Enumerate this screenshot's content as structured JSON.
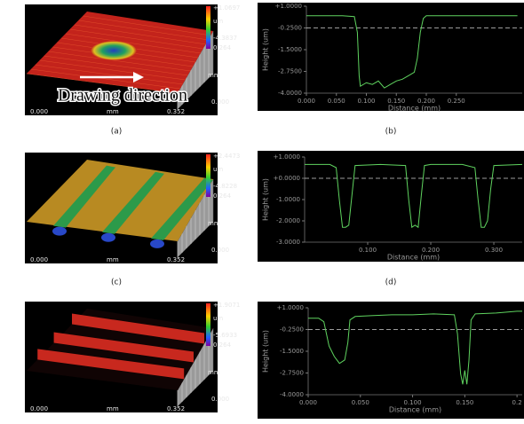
{
  "surfaces": [
    {
      "caption": "(a)",
      "max_label": "+1.0697",
      "unit": "um",
      "min_label": "-4.3837",
      "depth_label": "0.264",
      "depth_unit": "mm",
      "depth_start": "0.000",
      "x_start": "0.000",
      "x_unit": "mm",
      "x_end": "0.352",
      "annotation": "Drawing direction"
    },
    {
      "caption": "(c)",
      "max_label": "+2.4473",
      "unit": "um",
      "min_label": "-4.8228",
      "depth_label": "0.264",
      "depth_unit": "mm",
      "depth_start": "0.000",
      "x_start": "0.000",
      "x_unit": "mm",
      "x_end": "0.352"
    },
    {
      "max_label": "+1.9071",
      "unit": "um",
      "min_label": "-5.6933",
      "depth_label": "0.264",
      "depth_unit": "mm",
      "depth_start": "0.000",
      "x_start": "0.000",
      "x_unit": "mm",
      "x_end": "0.352"
    }
  ],
  "chart_data": [
    {
      "type": "line",
      "caption": "(b)",
      "xlabel": "Distance (mm)",
      "ylabel": "Height (um)",
      "xlim": [
        0,
        0.36
      ],
      "ylim": [
        -4,
        1
      ],
      "reference": -0.25,
      "xticks": [
        {
          "value": 0,
          "label": "0.000"
        },
        {
          "value": 0.05,
          "label": "0.050"
        },
        {
          "value": 0.1,
          "label": "0.100"
        },
        {
          "value": 0.15,
          "label": "0.150"
        },
        {
          "value": 0.2,
          "label": "0.200"
        },
        {
          "value": 0.25,
          "label": "0.250"
        }
      ],
      "yticks": [
        {
          "value": 1,
          "label": "+1.0000"
        },
        {
          "value": -0.25,
          "label": "-0.2500"
        },
        {
          "value": -1.5,
          "label": "-1.5000"
        },
        {
          "value": -2.75,
          "label": "-2.7500"
        },
        {
          "value": -4,
          "label": "-4.0000"
        }
      ],
      "x": [
        0,
        0.02,
        0.04,
        0.06,
        0.08,
        0.085,
        0.088,
        0.09,
        0.1,
        0.11,
        0.12,
        0.13,
        0.14,
        0.15,
        0.16,
        0.17,
        0.18,
        0.185,
        0.19,
        0.195,
        0.2,
        0.22,
        0.24,
        0.26,
        0.28,
        0.3,
        0.32,
        0.352
      ],
      "series": [
        {
          "color": "#5fd35f",
          "values": [
            0.45,
            0.45,
            0.45,
            0.45,
            0.4,
            -0.5,
            -3.0,
            -3.6,
            -3.4,
            -3.5,
            -3.3,
            -3.7,
            -3.5,
            -3.3,
            -3.2,
            -3.0,
            -2.8,
            -2.0,
            -0.5,
            0.3,
            0.45,
            0.45,
            0.45,
            0.45,
            0.45,
            0.45,
            0.45,
            0.45
          ]
        }
      ]
    },
    {
      "type": "line",
      "caption": "(d)",
      "xlabel": "Distance (mm)",
      "ylabel": "Height (um)",
      "xlim": [
        0,
        0.345
      ],
      "ylim": [
        -3,
        1
      ],
      "reference": 0,
      "xticks": [
        {
          "value": 0.1,
          "label": "0.100"
        },
        {
          "value": 0.2,
          "label": "0.200"
        },
        {
          "value": 0.3,
          "label": "0.300"
        }
      ],
      "yticks": [
        {
          "value": 1,
          "label": "+1.0000"
        },
        {
          "value": 0,
          "label": "+0.0000"
        },
        {
          "value": -1,
          "label": "-1.0000"
        },
        {
          "value": -2,
          "label": "-2.0000"
        },
        {
          "value": -3,
          "label": "-3.0000"
        }
      ],
      "x": [
        0,
        0.04,
        0.05,
        0.055,
        0.06,
        0.065,
        0.07,
        0.075,
        0.08,
        0.12,
        0.16,
        0.165,
        0.17,
        0.175,
        0.18,
        0.185,
        0.19,
        0.2,
        0.25,
        0.27,
        0.275,
        0.28,
        0.285,
        0.29,
        0.295,
        0.3,
        0.345
      ],
      "series": [
        {
          "color": "#5fd35f",
          "values": [
            0.65,
            0.65,
            0.5,
            -1.0,
            -2.3,
            -2.3,
            -2.2,
            -0.8,
            0.6,
            0.65,
            0.6,
            -1.0,
            -2.3,
            -2.2,
            -2.3,
            -0.8,
            0.6,
            0.65,
            0.65,
            0.5,
            -1.0,
            -2.3,
            -2.3,
            -2.0,
            -0.5,
            0.6,
            0.65
          ]
        }
      ]
    },
    {
      "type": "line",
      "xlabel": "Distance (mm)",
      "ylabel": "Height (um)",
      "xlim": [
        0,
        0.205
      ],
      "ylim": [
        -4,
        1
      ],
      "reference": -0.25,
      "xticks": [
        {
          "value": 0,
          "label": "0.000"
        },
        {
          "value": 0.05,
          "label": "0.050"
        },
        {
          "value": 0.1,
          "label": "0.100"
        },
        {
          "value": 0.15,
          "label": "0.150"
        },
        0.2
      ],
      "yticks": [
        {
          "value": 1,
          "label": "+1.0000"
        },
        {
          "value": -0.25,
          "label": "-0.2500"
        },
        {
          "value": -1.5,
          "label": "-1.5000"
        },
        {
          "value": -2.75,
          "label": "-2.7500"
        },
        {
          "value": -4,
          "label": "-4.0000"
        }
      ],
      "x": [
        0,
        0.01,
        0.015,
        0.02,
        0.025,
        0.03,
        0.035,
        0.038,
        0.04,
        0.045,
        0.06,
        0.08,
        0.1,
        0.12,
        0.14,
        0.143,
        0.146,
        0.148,
        0.15,
        0.152,
        0.154,
        0.156,
        0.16,
        0.18,
        0.2,
        0.205
      ],
      "series": [
        {
          "color": "#5fd35f",
          "values": [
            0.4,
            0.4,
            0.2,
            -1.2,
            -1.8,
            -2.2,
            -2.0,
            -1.0,
            0.3,
            0.5,
            0.55,
            0.6,
            0.6,
            0.65,
            0.6,
            -0.5,
            -2.8,
            -3.4,
            -2.6,
            -3.4,
            -2.0,
            0.3,
            0.65,
            0.7,
            0.8,
            0.8
          ]
        }
      ]
    }
  ]
}
